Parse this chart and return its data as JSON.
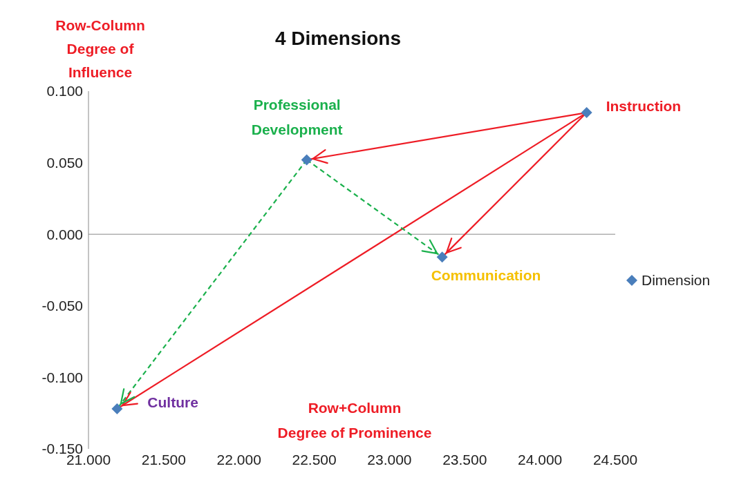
{
  "chart_data": {
    "type": "scatter",
    "title": "4 Dimensions",
    "xlabel": "Row+Column\nDegree of Prominence",
    "ylabel": "Row-Column\nDegree of\nInfluence",
    "x": [
      24.31,
      22.45,
      23.35,
      21.19
    ],
    "series": [
      {
        "type": "line",
        "color": "#ee1c25",
        "line_style": "solid",
        "marker": "none",
        "x": [
          24.31,
          22.45
        ],
        "values": [
          0.085,
          0.052
        ]
      },
      {
        "type": "line",
        "color": "#ee1c25",
        "line_style": "solid",
        "marker": "none",
        "x": [
          24.31,
          23.35
        ],
        "values": [
          0.085,
          -0.016
        ]
      },
      {
        "type": "line",
        "color": "#ee1c25",
        "line_style": "solid",
        "marker": "none",
        "x": [
          24.31,
          21.19
        ],
        "values": [
          0.085,
          -0.122
        ]
      },
      {
        "type": "line",
        "color": "#1ab04c",
        "line_style": "dashed",
        "marker": "none",
        "x": [
          22.45,
          23.35
        ],
        "values": [
          0.052,
          -0.016
        ]
      },
      {
        "type": "line",
        "color": "#1ab04c",
        "line_style": "dashed",
        "marker": "none",
        "x": [
          22.45,
          21.19
        ],
        "values": [
          0.052,
          -0.122
        ]
      },
      {
        "name": "Dimension",
        "color": "#4a7ebb",
        "values": [
          0.085,
          0.052,
          -0.016,
          -0.122
        ]
      }
    ],
    "annotations": [
      {
        "text": "Instruction",
        "x": 24.31,
        "y": 0.085
      },
      {
        "text": "Professional\nDevelopment",
        "x": 22.45,
        "y": 0.052
      },
      {
        "text": "Communication",
        "x": 23.35,
        "y": -0.016
      },
      {
        "text": "Culture",
        "x": 21.19,
        "y": -0.122
      }
    ],
    "xlim": [
      21,
      24.5
    ],
    "xticks": [
      {
        "value": 21,
        "label": "21.000"
      },
      {
        "value": 21.5,
        "label": "21.500"
      },
      {
        "value": 22,
        "label": "22.000"
      },
      {
        "value": 22.5,
        "label": "22.500"
      },
      {
        "value": 23,
        "label": "23.000"
      },
      {
        "value": 23.5,
        "label": "23.500"
      },
      {
        "value": 24,
        "label": "24.000"
      },
      {
        "value": 24.5,
        "label": "24.500"
      }
    ],
    "ylim": [
      -0.15,
      0.1
    ],
    "yticks": [
      {
        "value": -0.15,
        "label": "-0.150"
      },
      {
        "value": -0.1,
        "label": "-0.100"
      },
      {
        "value": -0.05,
        "label": "-0.050"
      },
      {
        "value": 0,
        "label": "0.000"
      },
      {
        "value": 0.05,
        "label": "0.050"
      },
      {
        "value": 0.1,
        "label": "0.100"
      }
    ],
    "ref_lines": [
      {
        "axis": "y",
        "value": 0,
        "color": "#888888"
      }
    ],
    "grid": false,
    "legend": "right",
    "marker": "diamond"
  }
}
